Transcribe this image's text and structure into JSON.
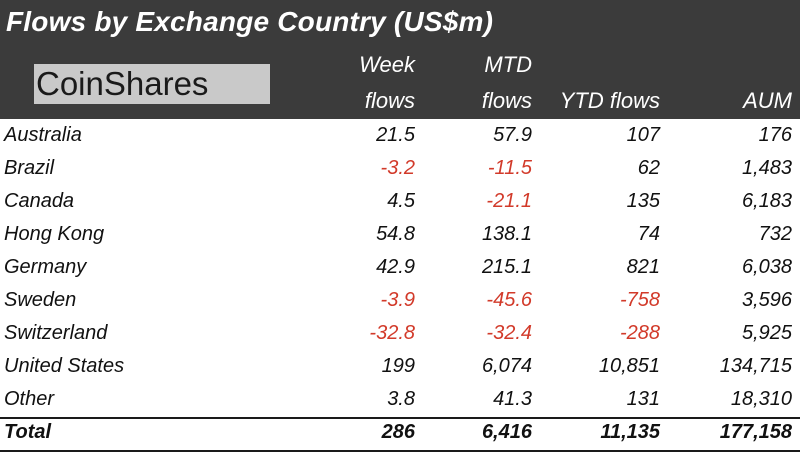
{
  "header": {
    "title": "Flows by Exchange Country (US$m)",
    "logo_text": "CoinShares",
    "columns": [
      {
        "line1": "Week",
        "line2": "flows"
      },
      {
        "line1": "MTD",
        "line2": "flows"
      },
      {
        "line1": "",
        "line2": "YTD flows"
      },
      {
        "line1": "",
        "line2": "AUM"
      }
    ]
  },
  "colors": {
    "header_bg": "#3b3b3b",
    "negative": "#d23a2a",
    "text": "#111111"
  },
  "chart_data": {
    "type": "table",
    "title": "Flows by Exchange Country (US$m)",
    "columns": [
      "Week flows",
      "MTD flows",
      "YTD flows",
      "AUM"
    ],
    "rows": [
      {
        "name": "Australia",
        "cells": [
          "21.5",
          "57.9",
          "107",
          "176"
        ]
      },
      {
        "name": "Brazil",
        "cells": [
          "-3.2",
          "-11.5",
          "62",
          "1,483"
        ]
      },
      {
        "name": "Canada",
        "cells": [
          "4.5",
          "-21.1",
          "135",
          "6,183"
        ]
      },
      {
        "name": "Hong Kong",
        "cells": [
          "54.8",
          "138.1",
          "74",
          "732"
        ]
      },
      {
        "name": "Germany",
        "cells": [
          "42.9",
          "215.1",
          "821",
          "6,038"
        ]
      },
      {
        "name": "Sweden",
        "cells": [
          "-3.9",
          "-45.6",
          "-758",
          "3,596"
        ]
      },
      {
        "name": "Switzerland",
        "cells": [
          "-32.8",
          "-32.4",
          "-288",
          "5,925"
        ]
      },
      {
        "name": "United States",
        "cells": [
          "199",
          "6,074",
          "10,851",
          "134,715"
        ]
      },
      {
        "name": "Other",
        "cells": [
          "3.8",
          "41.3",
          "131",
          "18,310"
        ]
      }
    ],
    "total": {
      "name": "Total",
      "cells": [
        "286",
        "6,416",
        "11,135",
        "177,158"
      ]
    }
  }
}
